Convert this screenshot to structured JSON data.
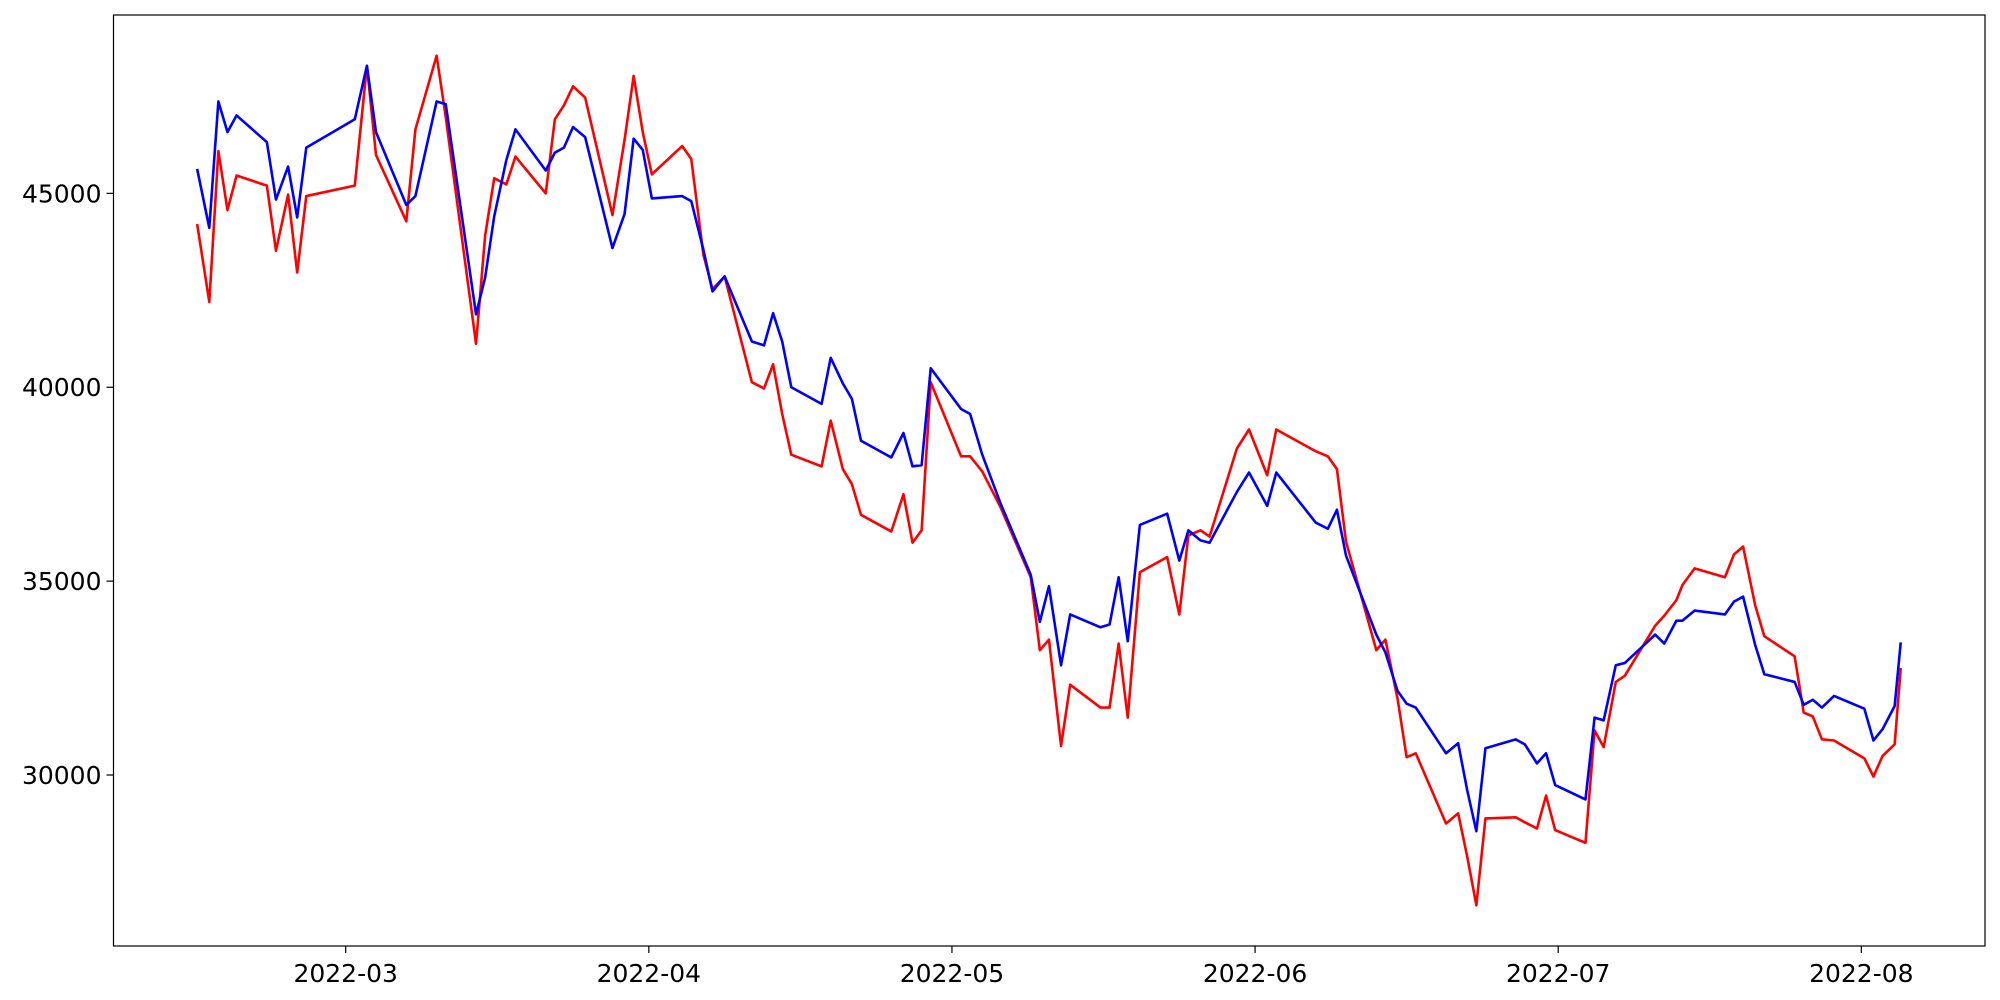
{
  "chart_data": {
    "type": "line",
    "x": [
      2.51,
      2.55,
      2.58,
      2.61,
      2.64,
      2.74,
      2.77,
      2.81,
      2.84,
      2.87,
      3.03,
      3.07,
      3.1,
      3.2,
      3.23,
      3.3,
      3.33,
      3.43,
      3.46,
      3.49,
      3.53,
      3.56,
      3.66,
      3.69,
      3.72,
      3.75,
      3.79,
      3.88,
      3.92,
      3.95,
      3.98,
      4.01,
      4.11,
      4.14,
      4.18,
      4.21,
      4.25,
      4.34,
      4.38,
      4.41,
      4.44,
      4.47,
      4.57,
      4.6,
      4.64,
      4.67,
      4.7,
      4.8,
      4.84,
      4.87,
      4.9,
      4.93,
      5.03,
      5.06,
      5.1,
      5.16,
      5.26,
      5.29,
      5.32,
      5.36,
      5.39,
      5.49,
      5.52,
      5.55,
      5.58,
      5.62,
      5.71,
      5.75,
      5.78,
      5.82,
      5.85,
      5.94,
      5.98,
      6.04,
      6.07,
      6.2,
      6.24,
      6.27,
      6.3,
      6.4,
      6.43,
      6.47,
      6.5,
      6.53,
      6.63,
      6.67,
      6.7,
      6.73,
      6.76,
      6.86,
      6.89,
      6.93,
      6.96,
      6.99,
      7.09,
      7.12,
      7.15,
      7.19,
      7.22,
      7.32,
      7.35,
      7.39,
      7.41,
      7.45,
      7.55,
      7.58,
      7.61,
      7.65,
      7.68,
      7.78,
      7.81,
      7.84,
      7.87,
      7.91,
      8.01,
      8.04,
      8.07,
      8.11,
      8.13
    ],
    "series": [
      {
        "color": "#ff0000",
        "values": [
          44210,
          42200,
          46090,
          44570,
          45460,
          45200,
          43520,
          44970,
          42960,
          44930,
          45200,
          48290,
          45990,
          44280,
          46650,
          48550,
          46970,
          41120,
          43910,
          45390,
          45230,
          45950,
          45000,
          46910,
          47270,
          47760,
          47470,
          44440,
          46380,
          48030,
          46580,
          45490,
          46220,
          45890,
          43420,
          42530,
          42860,
          40130,
          39970,
          40590,
          39310,
          38260,
          37960,
          39140,
          37890,
          37500,
          36710,
          36280,
          37240,
          35990,
          36310,
          40130,
          38220,
          38220,
          37830,
          36910,
          35100,
          33220,
          33490,
          30750,
          32330,
          31740,
          31740,
          33390,
          31480,
          35230,
          35620,
          34140,
          36180,
          36310,
          36150,
          38420,
          38910,
          37730,
          38910,
          38350,
          38220,
          37890,
          36020,
          33220,
          33490,
          31970,
          30460,
          30560,
          28750,
          29010,
          27890,
          26640,
          28880,
          28910,
          28780,
          28620,
          29470,
          28580,
          28250,
          31150,
          30720,
          32400,
          32560,
          33850,
          34110,
          34510,
          34900,
          35330,
          35100,
          35690,
          35890,
          34370,
          33580,
          33060,
          31610,
          31510,
          30920,
          30890,
          30430,
          29960,
          30490,
          30790,
          32760
        ]
      },
      {
        "color": "#0000ff",
        "values": [
          45630,
          44110,
          47370,
          46580,
          47010,
          46320,
          44840,
          45690,
          44380,
          46180,
          46910,
          48290,
          46580,
          44700,
          44930,
          47370,
          47300,
          41880,
          42830,
          44410,
          45860,
          46650,
          45590,
          46050,
          46180,
          46710,
          46450,
          43590,
          44470,
          46410,
          46120,
          44870,
          44930,
          44800,
          43550,
          42470,
          42860,
          41180,
          41080,
          41910,
          41180,
          40000,
          39570,
          40760,
          40100,
          39700,
          38620,
          38190,
          38820,
          37960,
          37990,
          40490,
          39440,
          39310,
          38260,
          37010,
          35160,
          33950,
          34870,
          32830,
          34140,
          33810,
          33880,
          35100,
          33450,
          36450,
          36740,
          35530,
          36310,
          36050,
          35990,
          37300,
          37800,
          36940,
          37800,
          36510,
          36350,
          36840,
          35660,
          33620,
          33160,
          32170,
          31840,
          31740,
          30560,
          30820,
          29600,
          28550,
          30690,
          30920,
          30790,
          30300,
          30560,
          29740,
          29370,
          31480,
          31410,
          32830,
          32890,
          33620,
          33390,
          33980,
          33980,
          34240,
          34140,
          34470,
          34600,
          33350,
          32600,
          32400,
          31810,
          31940,
          31740,
          32040,
          31710,
          30890,
          31180,
          31780,
          33420
        ]
      }
    ],
    "xlim": [
      2.234,
      8.408
    ],
    "xticks": [
      {
        "value": 3,
        "label": "2022-03"
      },
      {
        "value": 4,
        "label": "2022-04"
      },
      {
        "value": 5,
        "label": "2022-05"
      },
      {
        "value": 6,
        "label": "2022-06"
      },
      {
        "value": 7,
        "label": "2022-07"
      },
      {
        "value": 8,
        "label": "2022-08"
      }
    ],
    "ylim": [
      25590,
      49600
    ],
    "yticks": [
      30000,
      35000,
      40000,
      45000
    ],
    "grid": false
  }
}
